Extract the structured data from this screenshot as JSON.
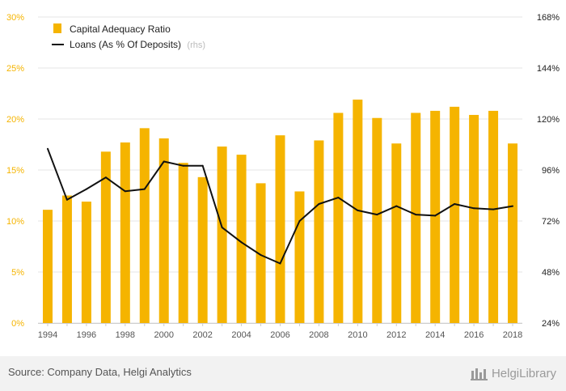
{
  "chart_data": {
    "type": "bar",
    "categories": [
      "1994",
      "1995",
      "1996",
      "1997",
      "1998",
      "1999",
      "2000",
      "2001",
      "2002",
      "2003",
      "2004",
      "2005",
      "2006",
      "2007",
      "2008",
      "2009",
      "2010",
      "2011",
      "2012",
      "2013",
      "2014",
      "2015",
      "2016",
      "2017",
      "2018"
    ],
    "x_tick_labels": [
      "1994",
      "1996",
      "1998",
      "2000",
      "2002",
      "2004",
      "2006",
      "2008",
      "2010",
      "2012",
      "2014",
      "2016",
      "2018"
    ],
    "series": [
      {
        "name": "Capital Adequacy Ratio",
        "type": "bar",
        "axis": "left",
        "color": "#f5b400",
        "values": [
          11.1,
          12.5,
          11.9,
          16.8,
          17.7,
          19.1,
          18.1,
          15.7,
          14.3,
          17.3,
          16.5,
          13.7,
          18.4,
          12.9,
          17.9,
          20.6,
          21.9,
          20.1,
          17.6,
          20.6,
          20.8,
          21.2,
          20.4,
          20.8,
          17.6
        ]
      },
      {
        "name": "Loans (As % Of Deposits)",
        "name_note": "(rhs)",
        "type": "line",
        "axis": "right",
        "color": "#111111",
        "values": [
          106,
          82,
          87,
          92.5,
          86,
          87,
          100,
          98,
          98,
          69,
          62,
          56,
          52,
          72,
          80,
          83,
          77,
          75,
          79,
          75,
          74.5,
          80,
          78,
          77.5,
          79
        ]
      }
    ],
    "y_left": {
      "min": 0,
      "max": 30,
      "ticks": [
        "0%",
        "5%",
        "10%",
        "15%",
        "20%",
        "25%",
        "30%"
      ]
    },
    "y_right": {
      "min": 24,
      "max": 168,
      "ticks": [
        "24%",
        "48%",
        "72%",
        "96%",
        "120%",
        "144%",
        "168%"
      ]
    },
    "grid": true,
    "legend": "top-left"
  },
  "footer": {
    "source": "Source: Company Data, Helgi Analytics",
    "brand": "HelgiLibrary"
  }
}
